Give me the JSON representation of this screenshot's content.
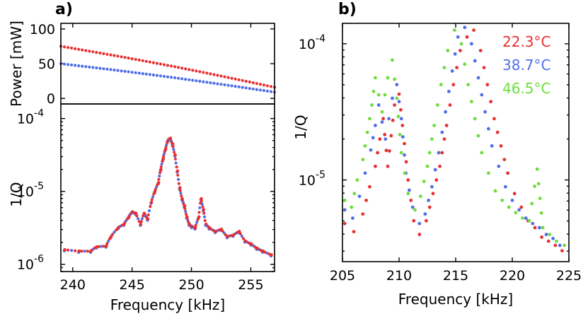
{
  "chart_data": [
    {
      "id": "a_top",
      "type": "scatter",
      "panel_label": "a)",
      "ylabel": "Power [mW]",
      "xlim": [
        239,
        257
      ],
      "ylim": [
        -8,
        108
      ],
      "ytick_labels": [
        "100",
        "50",
        "0"
      ],
      "yticks": [
        100,
        50,
        0
      ],
      "series": [
        {
          "name": "red",
          "color": "#e83030",
          "start": [
            239,
            75
          ],
          "end": [
            257,
            16
          ],
          "curve": 2
        },
        {
          "name": "blue",
          "color": "#4f6ee8",
          "start": [
            239,
            50
          ],
          "end": [
            257,
            9
          ],
          "curve": 1.5
        }
      ]
    },
    {
      "id": "a_bottom",
      "type": "scatter",
      "xlabel": "Frequency [kHz]",
      "ylabel": "1/Q",
      "xlim": [
        239,
        257
      ],
      "ylim_log10": [
        -6.1,
        -3.8
      ],
      "xtick_labels": [
        "240",
        "245",
        "250",
        "255"
      ],
      "xticks": [
        240,
        245,
        250,
        255
      ],
      "ytick_exponents": [
        "-4",
        "-5",
        "-6"
      ],
      "ytick_base": "10",
      "yticks_log10": [
        -4,
        -5,
        -6
      ],
      "points": [
        [
          239.3,
          -5.8
        ],
        [
          240.5,
          -5.82
        ],
        [
          241.5,
          -5.82
        ],
        [
          242.0,
          -5.76
        ],
        [
          242.8,
          -5.75
        ],
        [
          243.2,
          -5.62
        ],
        [
          243.8,
          -5.5
        ],
        [
          244.3,
          -5.45
        ],
        [
          244.7,
          -5.35
        ],
        [
          245.0,
          -5.28
        ],
        [
          245.3,
          -5.3
        ],
        [
          245.7,
          -5.45
        ],
        [
          246.0,
          -5.3
        ],
        [
          246.3,
          -5.38
        ],
        [
          246.6,
          -5.15
        ],
        [
          246.9,
          -5.0
        ],
        [
          247.2,
          -4.88
        ],
        [
          247.4,
          -4.7
        ],
        [
          247.6,
          -4.55
        ],
        [
          247.8,
          -4.42
        ],
        [
          248.0,
          -4.3
        ],
        [
          248.2,
          -4.27
        ],
        [
          248.4,
          -4.35
        ],
        [
          248.6,
          -4.5
        ],
        [
          248.8,
          -4.72
        ],
        [
          249.0,
          -4.95
        ],
        [
          249.2,
          -5.1
        ],
        [
          249.4,
          -5.2
        ],
        [
          249.6,
          -5.35
        ],
        [
          249.8,
          -5.45
        ],
        [
          250.0,
          -5.48
        ],
        [
          250.3,
          -5.5
        ],
        [
          250.6,
          -5.35
        ],
        [
          250.8,
          -5.1
        ],
        [
          251.0,
          -5.25
        ],
        [
          251.2,
          -5.45
        ],
        [
          251.5,
          -5.5
        ],
        [
          252.0,
          -5.55
        ],
        [
          252.5,
          -5.52
        ],
        [
          253.0,
          -5.62
        ],
        [
          253.5,
          -5.6
        ],
        [
          254.0,
          -5.55
        ],
        [
          254.5,
          -5.68
        ],
        [
          255.0,
          -5.72
        ],
        [
          255.5,
          -5.78
        ],
        [
          256.0,
          -5.82
        ],
        [
          256.7,
          -5.87
        ]
      ]
    },
    {
      "id": "b",
      "type": "scatter",
      "panel_label": "b)",
      "xlabel": "Frequency [kHz]",
      "ylabel": "1/Q",
      "xlim": [
        205,
        225
      ],
      "ylim_log10": [
        -5.6,
        -3.85
      ],
      "xtick_labels": [
        "205",
        "210",
        "215",
        "220",
        "225"
      ],
      "xticks": [
        205,
        210,
        215,
        220,
        225
      ],
      "ytick_exponents": [
        "-4",
        "-5"
      ],
      "ytick_base": "10",
      "yticks_log10": [
        -4,
        -5
      ],
      "series": [
        {
          "name": "22.3°C",
          "color": "#e83030",
          "points": [
            [
              205.2,
              -5.32
            ],
            [
              206.0,
              -5.38
            ],
            [
              206.8,
              -5.25
            ],
            [
              207.4,
              -5.05
            ],
            [
              207.9,
              -4.9
            ],
            [
              208.3,
              -4.7
            ],
            [
              208.6,
              -4.55
            ],
            [
              209.0,
              -4.9
            ],
            [
              209.6,
              -4.45
            ],
            [
              210.0,
              -4.37
            ],
            [
              210.3,
              -4.6
            ],
            [
              210.8,
              -5.0
            ],
            [
              211.3,
              -5.3
            ],
            [
              211.8,
              -5.4
            ],
            [
              212.4,
              -5.3
            ],
            [
              213.0,
              -5.1
            ],
            [
              213.6,
              -4.9
            ],
            [
              214.2,
              -4.6
            ],
            [
              214.8,
              -4.3
            ],
            [
              215.4,
              -4.05
            ],
            [
              216.0,
              -3.95
            ],
            [
              216.6,
              -3.9
            ],
            [
              217.2,
              -4.05
            ],
            [
              217.8,
              -4.3
            ],
            [
              218.4,
              -4.55
            ],
            [
              219.0,
              -4.75
            ],
            [
              219.6,
              -4.95
            ],
            [
              220.2,
              -5.1
            ],
            [
              220.8,
              -5.2
            ],
            [
              221.4,
              -5.3
            ],
            [
              222.0,
              -5.35
            ],
            [
              222.6,
              -5.42
            ],
            [
              223.2,
              -5.45
            ],
            [
              223.8,
              -5.48
            ],
            [
              224.4,
              -5.52
            ]
          ]
        },
        {
          "name": "38.7°C",
          "color": "#4f6ee8",
          "points": [
            [
              205.2,
              -5.22
            ],
            [
              205.9,
              -5.28
            ],
            [
              206.5,
              -5.12
            ],
            [
              207.0,
              -4.95
            ],
            [
              207.5,
              -4.78
            ],
            [
              207.9,
              -4.6
            ],
            [
              208.2,
              -4.45
            ],
            [
              208.8,
              -4.7
            ],
            [
              209.4,
              -4.4
            ],
            [
              209.8,
              -4.3
            ],
            [
              210.2,
              -4.55
            ],
            [
              210.6,
              -4.95
            ],
            [
              211.2,
              -5.2
            ],
            [
              211.8,
              -5.32
            ],
            [
              212.3,
              -5.25
            ],
            [
              212.9,
              -5.05
            ],
            [
              213.5,
              -4.8
            ],
            [
              214.1,
              -4.5
            ],
            [
              214.7,
              -4.2
            ],
            [
              215.2,
              -3.95
            ],
            [
              215.8,
              -3.88
            ],
            [
              216.4,
              -4.0
            ],
            [
              217.0,
              -4.25
            ],
            [
              217.6,
              -4.5
            ],
            [
              218.2,
              -4.75
            ],
            [
              218.8,
              -4.9
            ],
            [
              219.4,
              -5.05
            ],
            [
              220.0,
              -5.15
            ],
            [
              220.6,
              -5.22
            ],
            [
              221.2,
              -5.28
            ],
            [
              221.8,
              -5.32
            ],
            [
              222.4,
              -5.35
            ],
            [
              223.0,
              -5.4
            ],
            [
              223.6,
              -5.43
            ],
            [
              224.2,
              -5.48
            ]
          ]
        },
        {
          "name": "46.5°C",
          "color": "#6edc3c",
          "points": [
            [
              205.2,
              -5.15
            ],
            [
              205.8,
              -5.2
            ],
            [
              206.3,
              -5.0
            ],
            [
              206.8,
              -4.85
            ],
            [
              207.2,
              -4.65
            ],
            [
              207.6,
              -4.45
            ],
            [
              207.9,
              -4.25
            ],
            [
              208.5,
              -4.5
            ],
            [
              209.0,
              -4.25
            ],
            [
              209.4,
              -4.12
            ],
            [
              209.8,
              -4.4
            ],
            [
              210.2,
              -4.8
            ],
            [
              210.8,
              -5.1
            ],
            [
              211.4,
              -5.22
            ],
            [
              211.9,
              -5.12
            ],
            [
              212.5,
              -4.9
            ],
            [
              213.1,
              -4.6
            ],
            [
              213.7,
              -4.3
            ],
            [
              214.3,
              -4.05
            ],
            [
              214.9,
              -3.9
            ],
            [
              215.5,
              -4.0
            ],
            [
              216.1,
              -4.3
            ],
            [
              216.7,
              -4.55
            ],
            [
              217.3,
              -4.8
            ],
            [
              217.9,
              -4.95
            ],
            [
              218.5,
              -5.08
            ],
            [
              219.1,
              -5.15
            ],
            [
              219.7,
              -5.2
            ],
            [
              220.3,
              -5.24
            ],
            [
              220.9,
              -5.28
            ],
            [
              221.5,
              -5.3
            ],
            [
              222.2,
              -4.92
            ],
            [
              222.7,
              -5.35
            ],
            [
              223.3,
              -5.4
            ],
            [
              223.9,
              -5.45
            ],
            [
              224.6,
              -5.48
            ]
          ]
        }
      ]
    }
  ]
}
